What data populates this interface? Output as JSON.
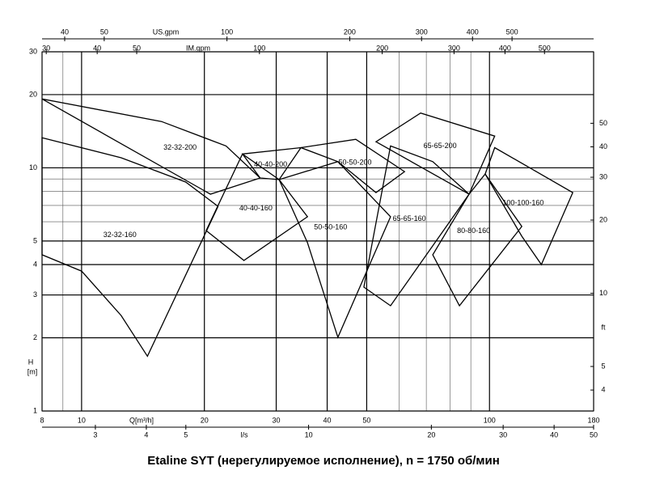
{
  "chart_data": {
    "type": "coverage",
    "caption": "Etaline SYT (нерегулируемое исполнение), n = 1750 об/мин",
    "log_scale": true,
    "grid": true,
    "minor_grid": true,
    "xlabel": "Q[m³/h]",
    "ylabel": "H",
    "ylabel_unit": "[m]",
    "xlim": [
      8,
      180
    ],
    "xticks": [
      8,
      10,
      20,
      30,
      40,
      50,
      100,
      180
    ],
    "ylim": [
      1,
      30
    ],
    "yticks": [
      1,
      2,
      3,
      4,
      5,
      10,
      20,
      30
    ],
    "x_ls": {
      "label": "l/s",
      "lim": [
        2.22,
        50
      ],
      "ticks": [
        3,
        4,
        5,
        10,
        20,
        30,
        40,
        50
      ]
    },
    "x_us": {
      "label": "US.gpm",
      "lim": [
        35.2,
        792.6
      ],
      "ticks": [
        40,
        50,
        100,
        200,
        300,
        400,
        500
      ]
    },
    "x_im": {
      "label": "IM.gpm",
      "lim": [
        29.3,
        659.9
      ],
      "ticks": [
        30,
        40,
        50,
        100,
        200,
        300,
        400,
        500
      ]
    },
    "y_ft": {
      "label": "ft",
      "lim": [
        3.28,
        98.4
      ],
      "ticks": [
        4,
        5,
        10,
        20,
        30,
        40,
        50
      ]
    },
    "color": "#000000",
    "series": [
      {
        "name": "32-32-160",
        "x": [
          8,
          12.5,
          18.0,
          21.6,
          14.5,
          12.5,
          10,
          8
        ],
        "y": [
          13.3,
          11.0,
          8.74,
          6.94,
          1.68,
          2.47,
          3.76,
          4.39
        ]
      },
      {
        "name": "32-32-200",
        "x": [
          8,
          15.7,
          22.6,
          27.4,
          20.7
        ],
        "y": [
          19.2,
          15.5,
          12.3,
          9.08,
          7.79
        ]
      },
      {
        "name": "40-40-200",
        "x": [
          24.8,
          34.5,
          30.5,
          27.4
        ],
        "y": [
          11.4,
          12.1,
          8.94,
          9.08
        ]
      },
      {
        "name": "40-40-160",
        "x": [
          20.2,
          25.0,
          35.8,
          30.5,
          24.8
        ],
        "y": [
          5.52,
          4.16,
          6.29,
          8.94,
          11.4
        ]
      },
      {
        "name": "50-50-200",
        "x": [
          34.5,
          47.0,
          61.9,
          52.7,
          42.5
        ],
        "y": [
          12.1,
          13.1,
          9.65,
          7.91,
          10.6
        ]
      },
      {
        "name": "50-50-160",
        "x": [
          30.5,
          42.5,
          57.2,
          42.5,
          35.8
        ],
        "y": [
          8.94,
          10.6,
          6.29,
          2.01,
          4.92
        ]
      },
      {
        "name": "65-65-160",
        "x": [
          49.2,
          57.2,
          89.1,
          72.6,
          57.2
        ],
        "y": [
          3.23,
          2.71,
          7.79,
          10.6,
          12.3
        ]
      },
      {
        "name": "65-65-200",
        "x": [
          52.7,
          89.1,
          103,
          67.8
        ],
        "y": [
          12.8,
          7.79,
          13.5,
          16.8
        ]
      },
      {
        "name": "80-80-160",
        "x": [
          72.6,
          84.4,
          120,
          97.6,
          89.1
        ],
        "y": [
          4.39,
          2.71,
          5.74,
          9.43,
          7.79
        ]
      },
      {
        "name": "100-100-160",
        "x": [
          103,
          160,
          134,
          120,
          97.6
        ],
        "y": [
          12.1,
          7.91,
          4.0,
          5.23,
          9.43
        ]
      }
    ]
  }
}
